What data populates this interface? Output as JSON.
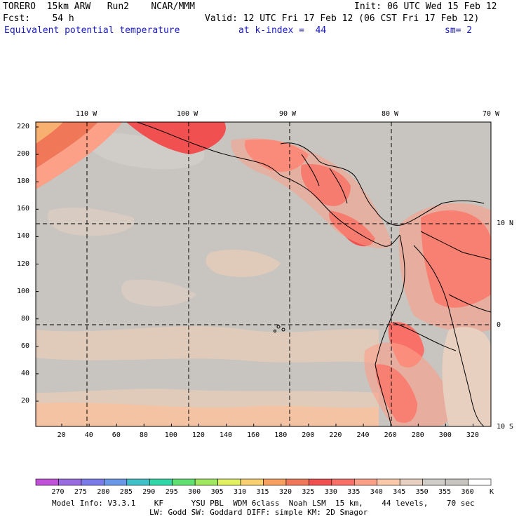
{
  "header": {
    "line1_left": "TORERO  15km ARW   Run2    NCAR/MMM",
    "line1_right": "Init: 06 UTC Wed 15 Feb 12",
    "line2_left": "Fcst:    54 h",
    "line2_right": "Valid: 12 UTC Fri 17 Feb 12 (06 CST Fri 17 Feb 12)",
    "line3_left": "Equivalent potential temperature",
    "line3_mid": "at k-index =  44",
    "line3_right": "sm= 2"
  },
  "map": {
    "top_lon_labels": [
      "110 W",
      "100 W",
      "90 W",
      "80 W",
      "70 W"
    ],
    "right_lat_labels": [
      "10 N",
      "0",
      "10 S"
    ],
    "y_grid_labels": [
      "220",
      "200",
      "180",
      "160",
      "140",
      "120",
      "100",
      "80",
      "60",
      "40",
      "20"
    ],
    "x_grid_labels": [
      "20",
      "40",
      "60",
      "80",
      "100",
      "120",
      "140",
      "160",
      "180",
      "200",
      "220",
      "240",
      "260",
      "280",
      "300",
      "320"
    ],
    "grid_style": "dashed lat/lon lines",
    "background_color": "#c8c4c0"
  },
  "colorbar": {
    "labels": [
      "270",
      "275",
      "280",
      "285",
      "290",
      "295",
      "300",
      "305",
      "310",
      "315",
      "320",
      "325",
      "330",
      "335",
      "340",
      "345",
      "350",
      "355",
      "360"
    ],
    "unit": "K",
    "colors": [
      "#c050d8",
      "#9a6ae0",
      "#7a7ae8",
      "#6a98e8",
      "#40c0c8",
      "#30d8a8",
      "#60e070",
      "#a0e860",
      "#e0f060",
      "#f8d070",
      "#f8a060",
      "#f07858",
      "#f05050",
      "#f87068",
      "#fca088",
      "#f8c8a8",
      "#e8d0c0",
      "#d0ccc8",
      "#c8c4c0",
      "#ffffff"
    ]
  },
  "footer": {
    "line1": "Model Info: V3.3.1    KF      YSU PBL  WDM 6class  Noah LSM  15 km,    44 levels,    70 sec",
    "line2": "LW: Godd SW: Goddard DIFF: simple KM: 2D Smagor"
  }
}
